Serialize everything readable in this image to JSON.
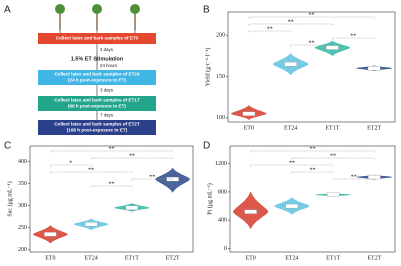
{
  "diagram": {
    "panel_label": "A",
    "steps": [
      {
        "lines": [
          "Collect latex and bark samples of ET0"
        ]
      },
      {
        "lines": [
          "Collect latex and bark samples of ET24",
          "(24 h post-exposure to ET)"
        ]
      },
      {
        "lines": [
          "Collect latex and bark samples of ET1T",
          "(96 h post-exposure to ET)"
        ]
      },
      {
        "lines": [
          "Collect latex and bark samples of ET2T",
          "(168 h post-exposure to ET)"
        ]
      }
    ],
    "intervals": [
      "2 days",
      "24 hours",
      "3 days",
      "7 days"
    ],
    "treatment": "1.5% ET Stimulation"
  },
  "chart_data": [
    {
      "type": "violin",
      "panel_label": "B",
      "ylabel": "Yield (g·t⁻¹·l⁻¹)",
      "categories": [
        "ET0",
        "ET24",
        "ET1T",
        "ET2T"
      ],
      "colors": [
        "#d63b2b",
        "#5fc3e0",
        "#2fb8a4",
        "#2c4a8a"
      ],
      "values": [
        105,
        165,
        185,
        160
      ],
      "lows": [
        98,
        152,
        175,
        157
      ],
      "highs": [
        115,
        178,
        193,
        163
      ],
      "ylim": [
        95,
        228
      ],
      "yticks": [
        100,
        150,
        200
      ],
      "significance": [
        {
          "pair": [
            "ET0",
            "ET2T"
          ],
          "label": "**"
        },
        {
          "pair": [
            "ET0",
            "ET1T"
          ],
          "label": "**"
        },
        {
          "pair": [
            "ET0",
            "ET24"
          ],
          "label": "**"
        },
        {
          "pair": [
            "ET1T",
            "ET2T"
          ],
          "label": "**"
        },
        {
          "pair": [
            "ET24",
            "ET1T"
          ],
          "label": "**"
        }
      ]
    },
    {
      "type": "violin",
      "panel_label": "C",
      "ylabel": "Sac (μg mL⁻¹)",
      "categories": [
        "ET0",
        "ET24",
        "ET1T",
        "ET2T"
      ],
      "colors": [
        "#d63b2b",
        "#5fc3e0",
        "#2fb8a4",
        "#2c4a8a"
      ],
      "values": [
        235,
        258,
        295,
        360
      ],
      "lows": [
        215,
        245,
        287,
        330
      ],
      "highs": [
        255,
        270,
        305,
        385
      ],
      "ylim": [
        195,
        435
      ],
      "yticks": [
        200,
        250,
        300,
        350,
        400
      ],
      "significance": [
        {
          "pair": [
            "ET0",
            "ET2T"
          ],
          "label": "**"
        },
        {
          "pair": [
            "ET24",
            "ET2T"
          ],
          "label": "**"
        },
        {
          "pair": [
            "ET0",
            "ET24"
          ],
          "label": "*"
        },
        {
          "pair": [
            "ET0",
            "ET1T"
          ],
          "label": "**"
        },
        {
          "pair": [
            "ET1T",
            "ET2T"
          ],
          "label": "**"
        },
        {
          "pair": [
            "ET24",
            "ET1T"
          ],
          "label": "**"
        }
      ]
    },
    {
      "type": "violin",
      "panel_label": "D",
      "ylabel": "Pi (μg mL⁻¹)",
      "categories": [
        "ET0",
        "ET24",
        "ET1T",
        "ET2T"
      ],
      "colors": [
        "#d63b2b",
        "#5fc3e0",
        "#2fb8a4",
        "#2c4a8a"
      ],
      "values": [
        520,
        600,
        760,
        1010
      ],
      "lows": [
        280,
        480,
        740,
        980
      ],
      "highs": [
        800,
        720,
        780,
        1040
      ],
      "ylim": [
        -50,
        1450
      ],
      "yticks": [
        0,
        400,
        800,
        1200
      ],
      "significance": [
        {
          "pair": [
            "ET0",
            "ET2T"
          ],
          "label": "**"
        },
        {
          "pair": [
            "ET24",
            "ET2T"
          ],
          "label": "**"
        },
        {
          "pair": [
            "ET0",
            "ET1T"
          ],
          "label": "**"
        },
        {
          "pair": [
            "ET24",
            "ET1T"
          ],
          "label": "**"
        },
        {
          "pair": [
            "ET1T",
            "ET2T"
          ],
          "label": "**"
        }
      ]
    }
  ]
}
